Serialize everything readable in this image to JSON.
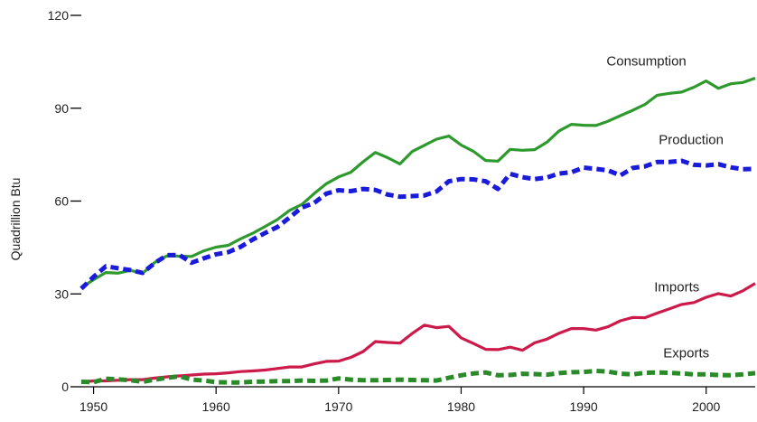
{
  "chart_data": {
    "type": "line",
    "title": "",
    "xlabel": "",
    "ylabel": "Quadrillion Btu",
    "xlim": [
      1949,
      2004
    ],
    "ylim": [
      0,
      120
    ],
    "x_ticks": [
      1950,
      1960,
      1970,
      1980,
      1990,
      2000
    ],
    "y_ticks": [
      0,
      30,
      60,
      90,
      120
    ],
    "grid": false,
    "legend": "none",
    "x": [
      1949,
      1950,
      1951,
      1952,
      1953,
      1954,
      1955,
      1956,
      1957,
      1958,
      1959,
      1960,
      1961,
      1962,
      1963,
      1964,
      1965,
      1966,
      1967,
      1968,
      1969,
      1970,
      1971,
      1972,
      1973,
      1974,
      1975,
      1976,
      1977,
      1978,
      1979,
      1980,
      1981,
      1982,
      1983,
      1984,
      1985,
      1986,
      1987,
      1988,
      1989,
      1990,
      1991,
      1992,
      1993,
      1994,
      1995,
      1996,
      1997,
      1998,
      1999,
      2000,
      2001,
      2002,
      2003,
      2004
    ],
    "series": [
      {
        "name": "Consumption",
        "color": "#2e9a2e",
        "dash": "solid",
        "values": [
          32,
          34.6,
          36.9,
          36.7,
          37.6,
          36.6,
          40.2,
          42.3,
          42.2,
          42.1,
          43.9,
          45.1,
          45.7,
          47.8,
          49.6,
          51.8,
          54,
          57,
          58.9,
          62.4,
          65.6,
          67.8,
          69.3,
          72.7,
          75.7,
          74,
          72,
          76,
          78,
          80,
          81,
          78.1,
          76.1,
          73.1,
          72.9,
          76.7,
          76.4,
          76.6,
          79,
          82.7,
          84.8,
          84.5,
          84.4,
          85.8,
          87.6,
          89.3,
          91.2,
          94.2,
          94.8,
          95.2,
          96.8,
          98.8,
          96.4,
          97.9,
          98.3,
          99.7
        ]
      },
      {
        "name": "Production",
        "color": "#1a1adb",
        "dash": "dashed",
        "values": [
          31.7,
          35.5,
          38.9,
          38.3,
          37.7,
          36.8,
          40,
          42.5,
          42.6,
          40.1,
          41.5,
          42.8,
          43.5,
          45.2,
          47.6,
          49.7,
          51.6,
          54.7,
          57.9,
          59.4,
          62.4,
          63.5,
          63.2,
          63.9,
          63.6,
          62.1,
          61.4,
          61.6,
          61.8,
          63.1,
          66.4,
          67.1,
          67,
          66.4,
          63.9,
          68.8,
          67.7,
          67.1,
          67.6,
          68.9,
          69.3,
          70.8,
          70.4,
          69.9,
          68.3,
          70.7,
          71.2,
          72.6,
          72.6,
          73,
          71.7,
          71.5,
          71.9,
          70.9,
          70.3,
          70.4
        ]
      },
      {
        "name": "Imports",
        "color": "#cc1a4a",
        "dash": "solid",
        "values": [
          1.5,
          1.9,
          1.9,
          2.1,
          2.3,
          2.3,
          2.8,
          3.2,
          3.5,
          3.8,
          4.1,
          4.2,
          4.5,
          4.9,
          5.1,
          5.4,
          5.9,
          6.4,
          6.4,
          7.4,
          8.2,
          8.3,
          9.5,
          11.4,
          14.6,
          14.3,
          14.1,
          17.2,
          19.9,
          19.1,
          19.5,
          15.8,
          14,
          12.1,
          12,
          12.8,
          11.8,
          14.2,
          15.4,
          17.3,
          18.8,
          18.8,
          18.3,
          19.4,
          21.3,
          22.4,
          22.3,
          23.8,
          25.2,
          26.6,
          27.2,
          28.9,
          30.1,
          29.3,
          31,
          33.4
        ]
      },
      {
        "name": "Exports",
        "color": "#2a8a2a",
        "dash": "dashed",
        "values": [
          1.6,
          1.5,
          2.6,
          2.4,
          2.1,
          1.6,
          2.3,
          2.9,
          3.4,
          2.3,
          2,
          1.5,
          1.4,
          1.4,
          1.6,
          1.7,
          1.8,
          1.8,
          2,
          1.9,
          2,
          2.7,
          2.3,
          2.1,
          2.1,
          2.2,
          2.3,
          2.2,
          2.1,
          2.0,
          2.9,
          3.7,
          4.3,
          4.6,
          3.7,
          3.8,
          4.2,
          4.1,
          3.9,
          4.4,
          4.7,
          4.8,
          5.1,
          4.9,
          4.2,
          4.0,
          4.5,
          4.6,
          4.5,
          4.3,
          4.0,
          4.0,
          3.8,
          3.7,
          4.0,
          4.4
        ]
      }
    ]
  }
}
